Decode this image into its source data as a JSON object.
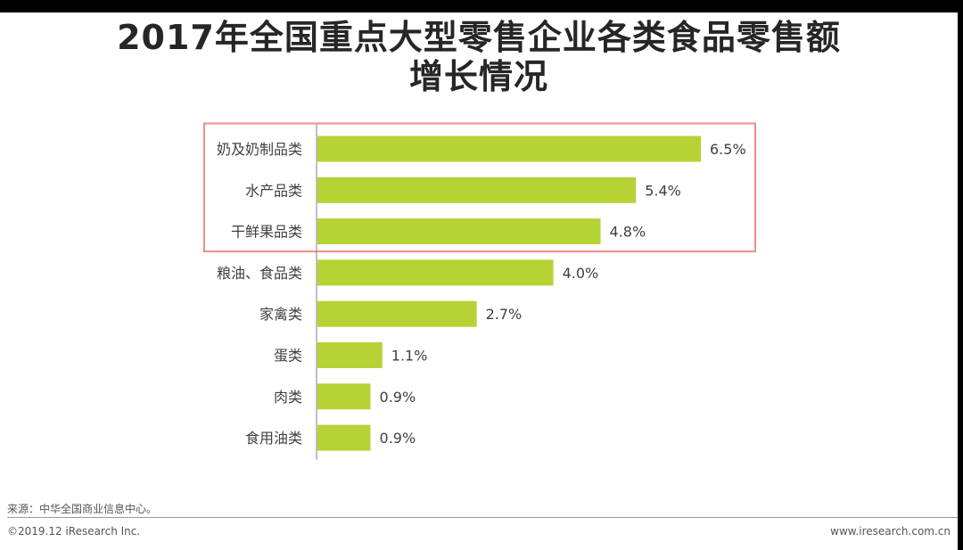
{
  "chart_data": {
    "type": "bar",
    "orientation": "horizontal",
    "title_lines": [
      "2017年全国重点大型零售企业各类食品零售额",
      "增长情况"
    ],
    "categories": [
      "奶及奶制品类",
      "水产品类",
      "干鲜果品类",
      "粮油、食品类",
      "家禽类",
      "蛋类",
      "肉类",
      "食用油类"
    ],
    "values": [
      6.5,
      5.4,
      4.8,
      4.0,
      2.7,
      1.1,
      0.9,
      0.9
    ],
    "value_labels": [
      "6.5%",
      "5.4%",
      "4.8%",
      "4.0%",
      "2.7%",
      "1.1%",
      "0.9%",
      "0.9%"
    ],
    "xlim": [
      0,
      6.5
    ],
    "bar_color": "#b5d334",
    "highlight_color": "#f08c8c",
    "highlighted_categories": [
      "奶及奶制品类",
      "水产品类",
      "干鲜果品类"
    ],
    "grid": false,
    "legend": "none"
  },
  "footer": {
    "source": "来源：中华全国商业信息中心。",
    "copyright": "©2019.12 iResearch Inc.",
    "website": "www.iresearch.com.cn"
  }
}
